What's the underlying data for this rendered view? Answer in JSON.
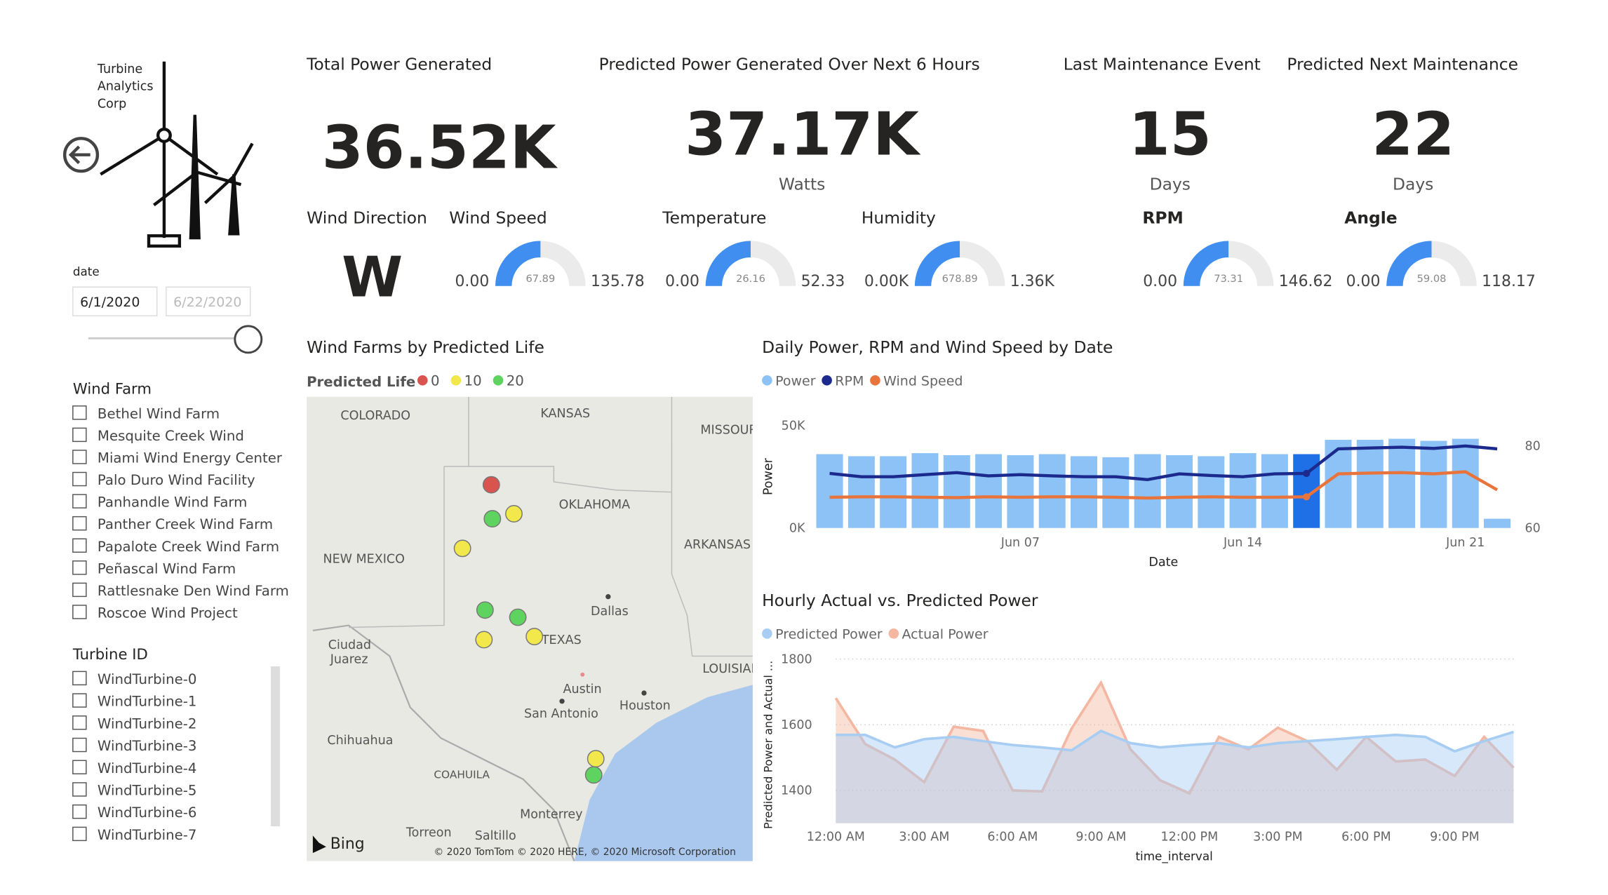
{
  "logo": {
    "lines": [
      "Turbine",
      "Analytics",
      "Corp"
    ]
  },
  "date_filter": {
    "label": "date",
    "start": "6/1/2020",
    "end": "6/22/2020"
  },
  "wind_farm_filter": {
    "title": "Wind Farm",
    "items": [
      "Bethel Wind Farm",
      "Mesquite Creek Wind",
      "Miami Wind Energy Center",
      "Palo Duro Wind Facility",
      "Panhandle Wind Farm",
      "Panther Creek Wind Farm",
      "Papalote Creek Wind Farm",
      "Peñascal Wind Farm",
      "Rattlesnake Den Wind Farm",
      "Roscoe Wind Project"
    ]
  },
  "turbine_filter": {
    "title": "Turbine ID",
    "items": [
      "WindTurbine-0",
      "WindTurbine-1",
      "WindTurbine-2",
      "WindTurbine-3",
      "WindTurbine-4",
      "WindTurbine-5",
      "WindTurbine-6",
      "WindTurbine-7"
    ]
  },
  "kpis": [
    {
      "title": "Total Power Generated",
      "value": "36.52K"
    },
    {
      "title": "Predicted Power Generated Over Next 6 Hours",
      "value": "37.17K",
      "unit": "Watts"
    },
    {
      "title": "Last Maintenance Event",
      "value": "15",
      "unit": "Days"
    },
    {
      "title": "Predicted Next Maintenance",
      "value": "22",
      "unit": "Days"
    }
  ],
  "wind_direction": {
    "title": "Wind Direction",
    "value": "W"
  },
  "gauges": [
    {
      "title": "Wind Speed",
      "min": {
        "value": 0,
        "label": "0.00"
      },
      "value": 67.89,
      "max": 135.78
    },
    {
      "title": "Temperature",
      "min": {
        "value": 0,
        "label": "0.00"
      },
      "value": 26.16,
      "max": 52.33
    },
    {
      "title": "Humidity",
      "min": {
        "value": 0,
        "label": "0.00K"
      },
      "value": 678.89,
      "max": {
        "value": 1360,
        "label": "1.36K"
      }
    },
    {
      "title": "RPM",
      "min": {
        "value": 0,
        "label": "0.00"
      },
      "value": 73.31,
      "max": 146.62
    },
    {
      "title": "Angle",
      "min": {
        "value": 0,
        "label": "0.00"
      },
      "value": 59.08,
      "max": 118.17
    }
  ],
  "map": {
    "title": "Wind Farms by Predicted Life",
    "legend_title": "Predicted Life",
    "legend": [
      {
        "value": 0,
        "color": "#d9534f"
      },
      {
        "value": 10,
        "color": "#f2e84b"
      },
      {
        "value": 20,
        "color": "#5fd35f"
      }
    ],
    "labels": [
      "COLORADO",
      "KANSAS",
      "MISSOURI",
      "OKLAHOMA",
      "ARKANSAS",
      "NEW MEXICO",
      "Dallas",
      "TEXAS",
      "LOUISIANA",
      "Ciudad",
      "Juarez",
      "Austin",
      "San Antonio",
      "Houston",
      "Chihuahua",
      "COAHUILA",
      "Monterrey",
      "Torreon",
      "Saltillo",
      "Bing",
      "© 2020 TomTom © 2020 HERE, © 2020 Microsoft Corporation"
    ],
    "points": [
      {
        "lon": -101.25,
        "lat": 36.37,
        "life": 0
      },
      {
        "lon": -101.21,
        "lat": 35.28,
        "life": 20
      },
      {
        "lon": -100.39,
        "lat": 35.44,
        "life": 10
      },
      {
        "lon": -102.35,
        "lat": 34.33,
        "life": 10
      },
      {
        "lon": -101.49,
        "lat": 32.35,
        "life": 20
      },
      {
        "lon": -100.24,
        "lat": 32.12,
        "life": 20
      },
      {
        "lon": -101.53,
        "lat": 31.4,
        "life": 10
      },
      {
        "lon": -99.61,
        "lat": 31.5,
        "life": 10
      },
      {
        "lon": -97.27,
        "lat": 27.58,
        "life": 10
      },
      {
        "lon": -97.35,
        "lat": 27.06,
        "life": 20
      }
    ]
  },
  "chart_data": [
    {
      "type": "bar_line",
      "title": "Daily Power, RPM and Wind Speed by Date",
      "x_label": "Date",
      "y_label": "Power",
      "categories": [
        null,
        null,
        null,
        null,
        null,
        null,
        "Jun 07",
        null,
        null,
        null,
        null,
        null,
        null,
        "Jun 14",
        null,
        null,
        null,
        null,
        null,
        null,
        "Jun 21",
        null
      ],
      "series": [
        {
          "name": "Power",
          "color": "#8cc2f5",
          "highlight": {
            "index": 15,
            "color": "#1f6fe6"
          },
          "values": [
            36000,
            35000,
            35000,
            36500,
            35500,
            36000,
            35500,
            36000,
            35000,
            34500,
            36000,
            35500,
            35000,
            36500,
            36000,
            36000,
            43000,
            43000,
            43500,
            42500,
            43500,
            4500
          ]
        },
        {
          "name": "RPM",
          "color": "#1b2a8c",
          "axis": "y2",
          "values": [
            73.3,
            72.5,
            72.5,
            73,
            73.5,
            72.7,
            73,
            72.7,
            72.5,
            72.5,
            71.8,
            73.2,
            72.8,
            72.5,
            73.2,
            73.3,
            79.3,
            79.5,
            79.7,
            79.4,
            80,
            79.3
          ]
        },
        {
          "name": "Wind Speed",
          "color": "#e8743b",
          "axis": "y2",
          "values": [
            67.5,
            67.6,
            67.6,
            67.5,
            67.4,
            67.6,
            67.5,
            67.6,
            67.6,
            67.5,
            67.3,
            67.5,
            67.6,
            67.5,
            67.5,
            67.6,
            73.2,
            73.4,
            73.5,
            73.2,
            73.7,
            69.3
          ]
        }
      ],
      "ylim": [
        0,
        50000
      ],
      "yticks": [
        {
          "value": 0,
          "label": "0K"
        },
        {
          "value": 50000,
          "label": "50K"
        }
      ],
      "y2lim": [
        60,
        85
      ],
      "y2ticks": [
        60,
        80
      ]
    },
    {
      "type": "area",
      "title": "Hourly Actual vs. Predicted Power",
      "x_label": "time_interval",
      "y_label": "Predicted Power and Actual ...",
      "categories": [
        "12:00 AM",
        null,
        null,
        "3:00 AM",
        null,
        null,
        "6:00 AM",
        null,
        null,
        "9:00 AM",
        null,
        null,
        "12:00 PM",
        null,
        null,
        "3:00 PM",
        null,
        null,
        "6:00 PM",
        null,
        null,
        "9:00 PM",
        null,
        null
      ],
      "series": [
        {
          "name": "Predicted Power",
          "color": "#a7cdf3",
          "values": [
            1569,
            1569,
            1531,
            1556,
            1563,
            1550,
            1538,
            1531,
            1522,
            1581,
            1544,
            1531,
            1538,
            1544,
            1531,
            1544,
            1550,
            1556,
            1563,
            1569,
            1563,
            1519,
            1550,
            1578
          ]
        },
        {
          "name": "Actual Power",
          "color": "#f4b7a1",
          "values": [
            1681,
            1541,
            1494,
            1425,
            1594,
            1581,
            1400,
            1397,
            1588,
            1728,
            1525,
            1431,
            1391,
            1563,
            1525,
            1591,
            1550,
            1463,
            1563,
            1488,
            1494,
            1444,
            1563,
            1469
          ]
        }
      ],
      "ylim": [
        1300,
        1840
      ],
      "yticks": [
        1400,
        1600,
        1800
      ],
      "grid": true
    }
  ]
}
